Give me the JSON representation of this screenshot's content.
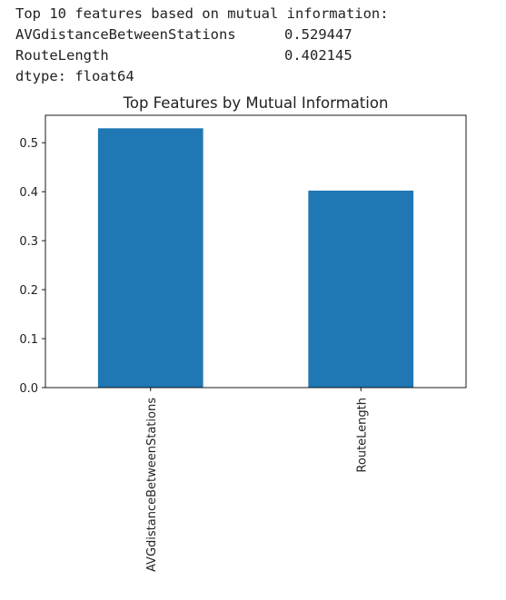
{
  "output": {
    "header": "Top 10 features based on mutual information:",
    "series": [
      {
        "name": "AVGdistanceBetweenStations",
        "value": "0.529447"
      },
      {
        "name": "RouteLength",
        "value": "0.402145"
      }
    ],
    "dtype": "dtype: float64"
  },
  "chart_data": {
    "type": "bar",
    "title": "Top Features by Mutual Information",
    "xlabel": "",
    "ylabel": "",
    "categories": [
      "AVGdistanceBetweenStations",
      "RouteLength"
    ],
    "values": [
      0.529447,
      0.402145
    ],
    "ylim": [
      0,
      0.556
    ],
    "yticks": [
      0.0,
      0.1,
      0.2,
      0.3,
      0.4,
      0.5
    ],
    "ytick_labels": [
      "0.0",
      "0.1",
      "0.2",
      "0.3",
      "0.4",
      "0.5"
    ],
    "bar_color": "#1f77b4",
    "grid": false,
    "legend": "none"
  }
}
